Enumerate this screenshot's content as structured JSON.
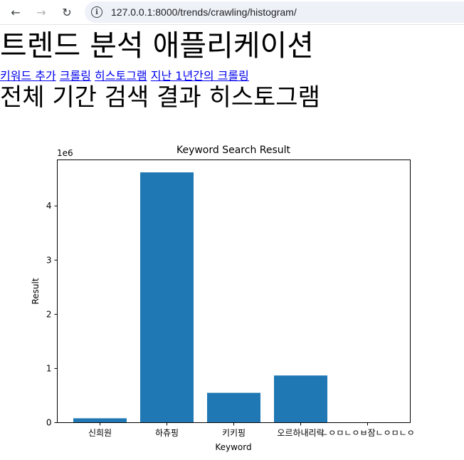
{
  "browser": {
    "url": "127.0.0.1:8000/trends/crawling/histogram/",
    "back_icon": "←",
    "forward_icon": "→",
    "reload_icon": "↻",
    "info_icon": "i"
  },
  "page": {
    "title": "트렌드 분석 애플리케이션",
    "nav_links": [
      "키워드 추가",
      "크롤링",
      "히스토그램",
      "지난 1년간의 크롤링"
    ],
    "section_title": "전체 기간 검색 결과 히스토그램"
  },
  "colors": {
    "bar": "#1f77b4"
  },
  "chart_data": {
    "type": "bar",
    "title": "Keyword Search Result",
    "xlabel": "Keyword",
    "ylabel": "Result",
    "y_offset_label": "1e6",
    "categories": [
      "신희원",
      "하츄핑",
      "키키핑",
      "오르하내리락",
      "ㄴㅇㅁㄴㅇㅂ잠ㄴㅇㅁㄴㅇ"
    ],
    "values": [
      80000,
      4620000,
      550000,
      870000,
      0
    ],
    "y_ticks": [
      0,
      1,
      2,
      3,
      4
    ],
    "ylim": [
      0,
      4851000
    ],
    "legend": "none",
    "grid": false
  }
}
